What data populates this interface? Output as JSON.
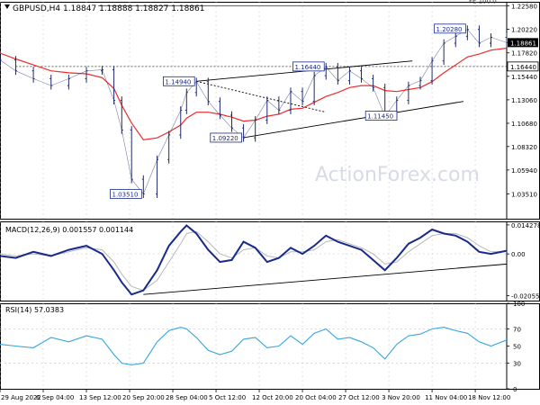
{
  "header": {
    "symbol_line": "GBPUSD,H4  1.18847 1.18888 1.18827 1.18861",
    "arrow_icon": "triangle-down-icon"
  },
  "watermark": "ActionForex.com",
  "colors": {
    "price": "#1f2a6b",
    "ema": "#ee2b2b",
    "macd": "#1a2a8a",
    "signal": "#b8b8b8",
    "rsi": "#33a6e0",
    "grid": "#cfcfcf",
    "trendline": "#000000"
  },
  "chart_data": [
    {
      "type": "line",
      "name": "price-panel",
      "title": "GBPUSD,H4",
      "ylim": [
        1.01,
        1.23
      ],
      "y_ticks": [
        "1.22580",
        "1.20220",
        "1.17820",
        "1.15440",
        "1.13060",
        "1.10680",
        "1.08320",
        "1.05940",
        "1.03510"
      ],
      "x": [
        0,
        8,
        17,
        26,
        35,
        44,
        52,
        58,
        62,
        67,
        73,
        80,
        86,
        92,
        95,
        100,
        106,
        112,
        118,
        124,
        130,
        136,
        142,
        148,
        154,
        160,
        166,
        172,
        178,
        184,
        190,
        196,
        202,
        208,
        214,
        220,
        226,
        232,
        238,
        244,
        250,
        258
      ],
      "close": [
        1.171,
        1.16,
        1.152,
        1.145,
        1.152,
        1.16,
        1.161,
        1.13,
        1.1,
        1.05,
        1.035,
        1.07,
        1.095,
        1.12,
        1.138,
        1.149,
        1.129,
        1.115,
        1.102,
        1.092,
        1.11,
        1.13,
        1.12,
        1.139,
        1.129,
        1.155,
        1.164,
        1.15,
        1.16,
        1.152,
        1.143,
        1.114,
        1.13,
        1.145,
        1.15,
        1.17,
        1.188,
        1.195,
        1.202,
        1.188,
        1.194,
        1.1886
      ],
      "ema": [
        1.178,
        1.172,
        1.166,
        1.16,
        1.158,
        1.157,
        1.153,
        1.142,
        1.125,
        1.107,
        1.09,
        1.092,
        1.098,
        1.105,
        1.112,
        1.118,
        1.118,
        1.116,
        1.113,
        1.109,
        1.11,
        1.114,
        1.116,
        1.121,
        1.122,
        1.128,
        1.134,
        1.138,
        1.143,
        1.145,
        1.145,
        1.14,
        1.139,
        1.141,
        1.143,
        1.149,
        1.158,
        1.166,
        1.174,
        1.177,
        1.181,
        1.183
      ],
      "levels": [
        {
          "label": "FE 100.0",
          "value": 1.2258,
          "style": "solid"
        },
        {
          "label": "1.16440",
          "value": 1.1644,
          "style": "dashed"
        }
      ],
      "current_price": "1.18861",
      "annotations": [
        {
          "label": "1.20280",
          "x": 238,
          "value": 1.2028
        },
        {
          "label": "1.16440",
          "x": 166,
          "value": 1.1644
        },
        {
          "label": "1.14940",
          "x": 100,
          "value": 1.1494
        },
        {
          "label": "1.11450",
          "x": 203,
          "value": 1.1145
        },
        {
          "label": "1.09220",
          "x": 124,
          "value": 1.0922
        },
        {
          "label": "1.03510",
          "x": 73,
          "value": 1.0351
        }
      ],
      "channel_lines": [
        {
          "x1": 100,
          "y1": 1.1494,
          "x2": 210,
          "y2": 1.17
        },
        {
          "x1": 124,
          "y1": 1.0922,
          "x2": 236,
          "y2": 1.129
        },
        {
          "x1": 100,
          "y1": 1.1494,
          "x2": 166,
          "y2": 1.118,
          "style": "dashed"
        }
      ]
    },
    {
      "type": "line",
      "name": "macd-panel",
      "title": "MACD(12,26,9) 0.001557 0.001144",
      "ylim": [
        -0.023,
        0.016
      ],
      "y_ticks": [
        "0.014278",
        "0.00",
        "-0.020556"
      ],
      "x": [
        0,
        8,
        17,
        26,
        35,
        44,
        52,
        58,
        62,
        67,
        73,
        80,
        86,
        92,
        95,
        100,
        106,
        112,
        118,
        124,
        130,
        136,
        142,
        148,
        154,
        160,
        166,
        172,
        178,
        184,
        190,
        196,
        202,
        208,
        214,
        220,
        226,
        232,
        238,
        244,
        250,
        258
      ],
      "macd": [
        -0.001,
        -0.002,
        0.001,
        -0.001,
        0.002,
        0.004,
        0.0,
        -0.008,
        -0.014,
        -0.02,
        -0.018,
        -0.008,
        0.004,
        0.011,
        0.014,
        0.01,
        0.002,
        -0.004,
        -0.003,
        0.006,
        0.003,
        -0.004,
        -0.002,
        0.003,
        0.0,
        0.004,
        0.009,
        0.006,
        0.004,
        0.002,
        -0.003,
        -0.008,
        -0.002,
        0.005,
        0.008,
        0.012,
        0.01,
        0.009,
        0.006,
        0.001,
        0.0,
        0.001557
      ],
      "signal": [
        0.0,
        -0.001,
        0.0,
        -0.001,
        0.001,
        0.003,
        0.002,
        -0.004,
        -0.01,
        -0.016,
        -0.018,
        -0.013,
        -0.004,
        0.005,
        0.01,
        0.011,
        0.006,
        0.0,
        -0.002,
        0.002,
        0.003,
        -0.001,
        -0.002,
        0.001,
        0.001,
        0.002,
        0.006,
        0.007,
        0.005,
        0.003,
        0.0,
        -0.005,
        -0.004,
        0.001,
        0.005,
        0.009,
        0.01,
        0.01,
        0.008,
        0.004,
        0.001,
        0.001144
      ],
      "trendline": {
        "x1": 73,
        "y1": -0.02,
        "x2": 258,
        "y2": -0.005
      }
    },
    {
      "type": "line",
      "name": "rsi-panel",
      "title": "RSI(14) 57.0383",
      "ylim": [
        0,
        100
      ],
      "y_ticks": [
        "100",
        "70",
        "50",
        "30",
        "0"
      ],
      "x": [
        0,
        8,
        17,
        26,
        35,
        44,
        52,
        58,
        62,
        67,
        73,
        80,
        86,
        92,
        95,
        100,
        106,
        112,
        118,
        124,
        130,
        136,
        142,
        148,
        154,
        160,
        166,
        172,
        178,
        184,
        190,
        196,
        202,
        208,
        214,
        220,
        226,
        232,
        238,
        244,
        250,
        258
      ],
      "rsi": [
        52,
        50,
        48,
        60,
        55,
        62,
        58,
        40,
        30,
        28,
        30,
        55,
        68,
        72,
        70,
        60,
        45,
        40,
        44,
        58,
        60,
        48,
        50,
        62,
        52,
        65,
        70,
        58,
        60,
        55,
        48,
        35,
        52,
        62,
        64,
        70,
        72,
        68,
        65,
        55,
        50,
        57.0383
      ],
      "levels": [
        70,
        30
      ]
    }
  ],
  "x_axis": {
    "labels": [
      "29 Aug 2022",
      "6 Sep 04:00",
      "13 Sep 12:00",
      "20 Sep 20:00",
      "28 Sep 04:00",
      "5 Oct 12:00",
      "12 Oct 20:00",
      "20 Oct 04:00",
      "27 Oct 12:00",
      "3 Nov 20:00",
      "11 Nov 04:00",
      "18 Nov 12:00"
    ],
    "positions": [
      0,
      22,
      44,
      66,
      88,
      110,
      132,
      154,
      176,
      198,
      220,
      242
    ]
  }
}
